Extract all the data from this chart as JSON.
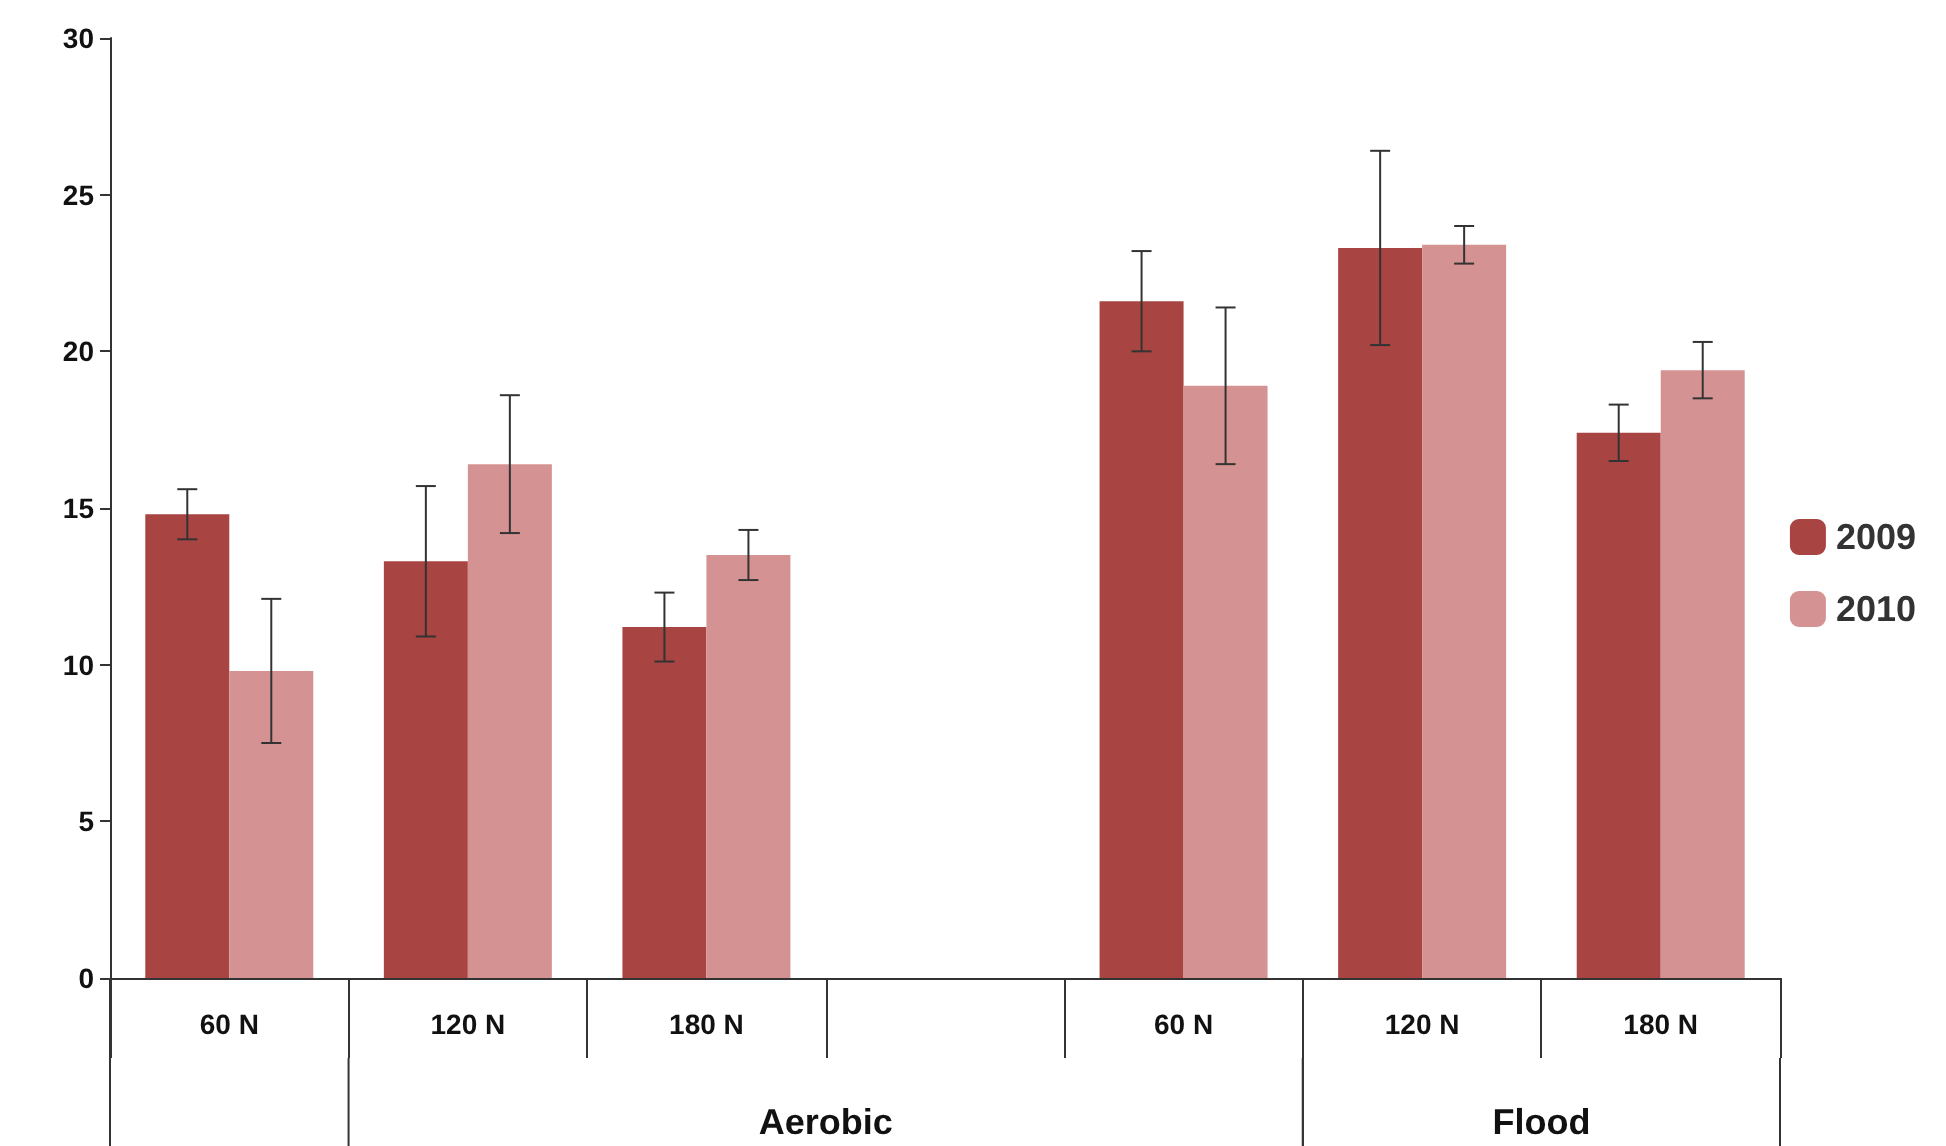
{
  "chart_data": {
    "type": "bar",
    "categories": [
      "60 N",
      "120 N",
      "180 N",
      null,
      "60 N",
      "120 N",
      "180 N"
    ],
    "series": [
      {
        "name": "2009",
        "color": "#a84442",
        "values": [
          14.8,
          13.3,
          11.2,
          null,
          21.6,
          23.3,
          17.4
        ],
        "errors": [
          0.8,
          2.4,
          1.1,
          null,
          1.6,
          3.1,
          0.9
        ]
      },
      {
        "name": "2010",
        "color": "#d49392",
        "values": [
          9.8,
          16.4,
          13.5,
          null,
          18.9,
          23.4,
          19.4
        ],
        "errors": [
          2.3,
          2.2,
          0.8,
          null,
          2.5,
          0.6,
          0.9
        ]
      }
    ],
    "ylim": [
      0,
      30
    ],
    "yticks": [
      0,
      5,
      10,
      15,
      20,
      25,
      30
    ],
    "grid": false,
    "legend": "right",
    "annotations": [
      "Aerobic",
      "Flood"
    ]
  }
}
